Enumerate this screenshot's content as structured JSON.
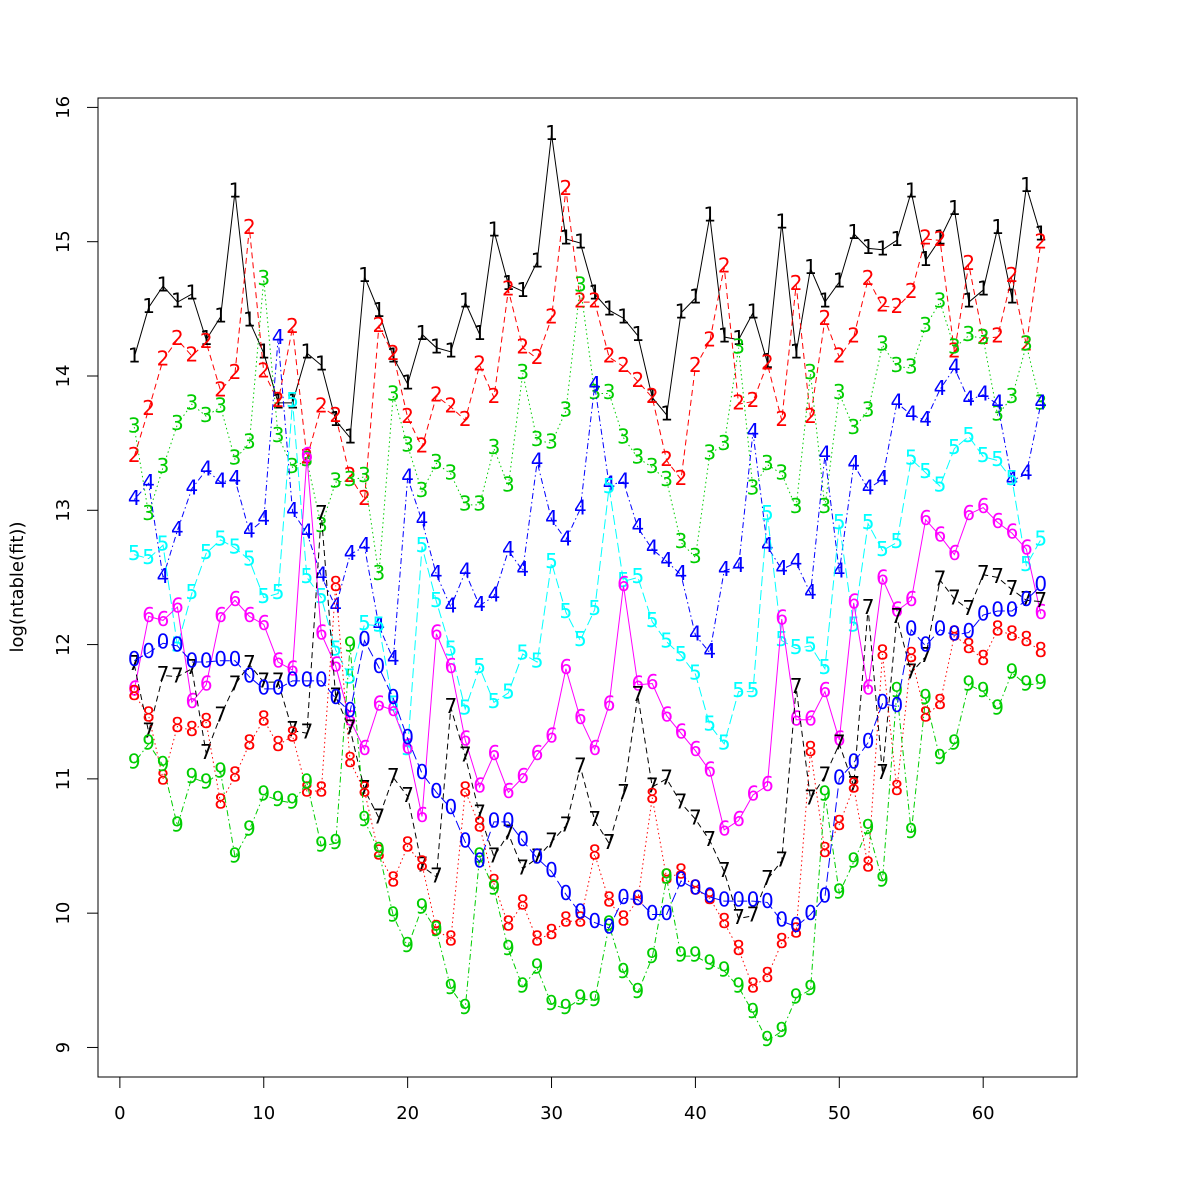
{
  "chart_data": {
    "type": "matplot",
    "ylabel": "log(ntable(fit))",
    "x": [
      1,
      2,
      3,
      4,
      5,
      6,
      7,
      8,
      9,
      10,
      11,
      12,
      13,
      14,
      15,
      16,
      17,
      18,
      19,
      20,
      21,
      22,
      23,
      24,
      25,
      26,
      27,
      28,
      29,
      30,
      31,
      32,
      33,
      34,
      35,
      36,
      37,
      38,
      39,
      40,
      41,
      42,
      43,
      44,
      45,
      46,
      47,
      48,
      49,
      50,
      51,
      52,
      53,
      54,
      55,
      56,
      57,
      58,
      59,
      60,
      61,
      62,
      63,
      64
    ],
    "xlim": [
      -1.52,
      66.52
    ],
    "ylim": [
      8.78,
      16.07
    ],
    "xticks": [
      0,
      10,
      20,
      30,
      40,
      50,
      60
    ],
    "yticks": [
      9,
      10,
      11,
      12,
      13,
      14,
      15,
      16
    ],
    "series": [
      {
        "name": "1",
        "color": "#000000",
        "linestyle": "solid",
        "values": [
          14.14,
          14.51,
          14.67,
          14.55,
          14.61,
          14.27,
          14.44,
          15.37,
          14.41,
          14.17,
          13.8,
          13.8,
          14.17,
          14.08,
          13.67,
          13.54,
          14.74,
          14.48,
          14.14,
          13.94,
          14.31,
          14.21,
          14.18,
          14.55,
          14.31,
          15.08,
          14.68,
          14.63,
          14.85,
          15.8,
          15.02,
          14.99,
          14.61,
          14.49,
          14.43,
          14.3,
          13.84,
          13.71,
          14.47,
          14.58,
          15.19,
          14.29,
          14.27,
          14.47,
          14.1,
          15.14,
          14.17,
          14.8,
          14.55,
          14.7,
          15.06,
          14.95,
          14.94,
          15.01,
          15.37,
          14.86,
          15.02,
          15.24,
          14.55,
          14.64,
          15.1,
          14.58,
          15.41,
          15.05
        ]
      },
      {
        "name": "2",
        "color": "#ff0000",
        "linestyle": "dashed",
        "values": [
          13.4,
          13.75,
          14.12,
          14.27,
          14.15,
          14.25,
          13.89,
          14.02,
          15.1,
          14.03,
          13.81,
          14.36,
          13.39,
          13.77,
          13.7,
          13.25,
          13.08,
          14.37,
          14.16,
          13.69,
          13.47,
          13.85,
          13.77,
          13.67,
          14.08,
          13.84,
          14.64,
          14.21,
          14.13,
          14.43,
          15.39,
          14.55,
          14.55,
          14.14,
          14.07,
          13.96,
          13.84,
          13.37,
          13.23,
          14.07,
          14.26,
          14.81,
          13.79,
          13.81,
          14.09,
          13.67,
          14.68,
          13.69,
          14.42,
          14.14,
          14.29,
          14.72,
          14.52,
          14.51,
          14.62,
          15.02,
          15.01,
          14.18,
          14.83,
          14.28,
          14.29,
          14.74,
          14.23,
          14.99
        ]
      },
      {
        "name": "3",
        "color": "#00cd00",
        "linestyle": "dotted",
        "values": [
          13.62,
          12.97,
          13.32,
          13.64,
          13.79,
          13.7,
          13.77,
          13.38,
          13.5,
          14.72,
          13.55,
          13.32,
          13.37,
          12.88,
          13.21,
          13.22,
          13.25,
          12.52,
          13.86,
          13.48,
          13.14,
          13.35,
          13.27,
          13.04,
          13.04,
          13.46,
          13.18,
          14.02,
          13.52,
          13.5,
          13.74,
          14.67,
          13.87,
          13.87,
          13.54,
          13.39,
          13.32,
          13.22,
          12.76,
          12.65,
          13.42,
          13.49,
          14.21,
          13.16,
          13.34,
          13.27,
          13.02,
          14.02,
          13.02,
          13.87,
          13.61,
          13.74,
          14.23,
          14.07,
          14.06,
          14.37,
          14.55,
          14.21,
          14.3,
          14.28,
          13.71,
          13.84,
          14.23,
          13.79
        ]
      },
      {
        "name": "4",
        "color": "#0000ff",
        "linestyle": "dotdash",
        "values": [
          13.08,
          13.2,
          12.5,
          12.85,
          13.16,
          13.3,
          13.21,
          13.23,
          12.84,
          12.93,
          14.28,
          12.99,
          12.83,
          12.51,
          12.28,
          12.67,
          12.73,
          12.14,
          11.89,
          13.24,
          12.92,
          12.52,
          12.28,
          12.54,
          12.29,
          12.36,
          12.7,
          12.55,
          13.36,
          12.93,
          12.78,
          13.01,
          13.93,
          13.19,
          13.21,
          12.87,
          12.71,
          12.62,
          12.52,
          12.07,
          11.94,
          12.55,
          12.58,
          13.58,
          12.73,
          12.56,
          12.61,
          12.38,
          13.41,
          12.54,
          13.34,
          13.16,
          13.23,
          13.8,
          13.71,
          13.67,
          13.9,
          14.06,
          13.82,
          13.86,
          13.79,
          13.22,
          13.27,
          13.79
        ]
      },
      {
        "name": "5",
        "color": "#00ffff",
        "linestyle": "longdash",
        "values": [
          12.67,
          12.64,
          12.74,
          11.99,
          12.38,
          12.68,
          12.78,
          12.72,
          12.63,
          12.35,
          12.38,
          13.81,
          12.5,
          12.35,
          11.96,
          11.75,
          12.15,
          12.14,
          11.55,
          11.22,
          12.73,
          12.32,
          11.96,
          11.52,
          11.83,
          11.57,
          11.64,
          11.93,
          11.87,
          12.61,
          12.24,
          12.03,
          12.26,
          13.17,
          12.47,
          12.5,
          12.17,
          12.02,
          11.92,
          11.78,
          11.4,
          11.26,
          11.65,
          11.65,
          12.97,
          12.03,
          11.97,
          11.99,
          11.82,
          12.9,
          12.14,
          12.9,
          12.7,
          12.76,
          13.38,
          13.28,
          13.18,
          13.46,
          13.55,
          13.4,
          13.37,
          13.23,
          12.59,
          12.78
        ]
      },
      {
        "name": "6",
        "color": "#ff00ff",
        "linestyle": "solid",
        "values": [
          11.66,
          12.21,
          12.18,
          12.28,
          11.57,
          11.7,
          12.21,
          12.33,
          12.21,
          12.15,
          11.87,
          11.81,
          13.4,
          12.08,
          11.84,
          11.44,
          11.22,
          11.55,
          11.51,
          11.23,
          10.72,
          12.08,
          11.83,
          11.29,
          10.94,
          11.18,
          10.9,
          11.01,
          11.18,
          11.31,
          11.82,
          11.45,
          11.22,
          11.55,
          12.44,
          11.7,
          11.71,
          11.47,
          11.34,
          11.21,
          11.06,
          10.62,
          10.69,
          10.88,
          10.95,
          12.19,
          11.44,
          11.44,
          11.65,
          11.29,
          12.31,
          11.67,
          12.49,
          12.25,
          12.33,
          12.93,
          12.81,
          12.67,
          12.97,
          13.02,
          12.91,
          12.83,
          12.71,
          12.23
        ]
      },
      {
        "name": "7",
        "color": "#000000",
        "linestyle": "dashed",
        "values": [
          11.85,
          11.35,
          11.77,
          11.76,
          11.82,
          11.19,
          11.47,
          11.7,
          11.85,
          11.72,
          11.72,
          11.36,
          11.34,
          12.97,
          11.61,
          11.37,
          10.92,
          10.71,
          11.01,
          10.87,
          10.35,
          10.27,
          11.53,
          11.17,
          10.74,
          10.42,
          10.59,
          10.33,
          10.41,
          10.53,
          10.65,
          11.09,
          10.69,
          10.52,
          10.89,
          11.62,
          10.94,
          11.0,
          10.82,
          10.7,
          10.54,
          10.31,
          9.96,
          9.98,
          10.25,
          10.39,
          11.68,
          10.85,
          11.02,
          11.26,
          10.95,
          12.27,
          11.04,
          12.2,
          11.79,
          11.91,
          12.48,
          12.34,
          12.26,
          12.52,
          12.5,
          12.41,
          12.33,
          12.32
        ]
      },
      {
        "name": "8",
        "color": "#ff0000",
        "linestyle": "dotted",
        "values": [
          11.63,
          11.47,
          11.0,
          11.39,
          11.36,
          11.42,
          10.82,
          11.02,
          11.26,
          11.44,
          11.25,
          11.32,
          10.91,
          10.91,
          12.44,
          11.13,
          10.91,
          10.44,
          10.24,
          10.5,
          10.36,
          9.88,
          9.8,
          10.91,
          10.65,
          10.22,
          9.91,
          10.07,
          9.8,
          9.85,
          9.94,
          9.94,
          10.44,
          10.09,
          9.95,
          10.1,
          10.86,
          10.26,
          10.3,
          10.18,
          10.11,
          9.93,
          9.73,
          9.45,
          9.53,
          9.78,
          9.86,
          11.21,
          10.46,
          10.66,
          10.94,
          10.35,
          11.93,
          10.92,
          11.91,
          11.47,
          11.56,
          12.07,
          11.98,
          11.89,
          12.11,
          12.07,
          12.03,
          11.95
        ]
      },
      {
        "name": "9",
        "color": "#00cd00",
        "linestyle": "dotdash",
        "values": [
          11.12,
          11.26,
          11.1,
          10.65,
          11.01,
          10.97,
          11.05,
          10.42,
          10.62,
          10.88,
          10.84,
          10.82,
          10.97,
          10.5,
          10.52,
          11.99,
          10.69,
          10.46,
          9.98,
          9.75,
          10.04,
          9.87,
          9.44,
          9.29,
          10.42,
          10.18,
          9.73,
          9.45,
          9.59,
          9.32,
          9.29,
          9.36,
          9.35,
          9.91,
          9.56,
          9.41,
          9.67,
          10.26,
          9.68,
          9.68,
          9.62,
          9.57,
          9.45,
          9.26,
          9.05,
          9.12,
          9.37,
          9.43,
          10.88,
          10.15,
          10.38,
          10.63,
          10.24,
          11.65,
          10.6,
          11.6,
          11.15,
          11.26,
          11.7,
          11.65,
          11.52,
          11.79,
          11.7,
          11.71
        ]
      },
      {
        "name": "0",
        "color": "#0000ff",
        "linestyle": "longdash",
        "values": [
          11.88,
          11.94,
          12.01,
          11.99,
          11.87,
          11.87,
          11.88,
          11.88,
          11.76,
          11.67,
          11.67,
          11.73,
          11.73,
          11.73,
          11.6,
          11.5,
          12.03,
          11.83,
          11.6,
          11.3,
          11.04,
          10.9,
          10.78,
          10.53,
          10.38,
          10.68,
          10.68,
          10.54,
          10.41,
          10.31,
          10.14,
          10.0,
          9.93,
          9.89,
          10.11,
          10.1,
          9.99,
          9.99,
          10.24,
          10.18,
          10.12,
          10.09,
          10.09,
          10.09,
          10.08,
          9.94,
          9.9,
          9.99,
          10.12,
          11.0,
          11.12,
          11.27,
          11.56,
          11.54,
          12.11,
          11.99,
          12.11,
          12.07,
          12.09,
          12.22,
          12.25,
          12.25,
          12.33,
          12.44
        ]
      }
    ]
  }
}
